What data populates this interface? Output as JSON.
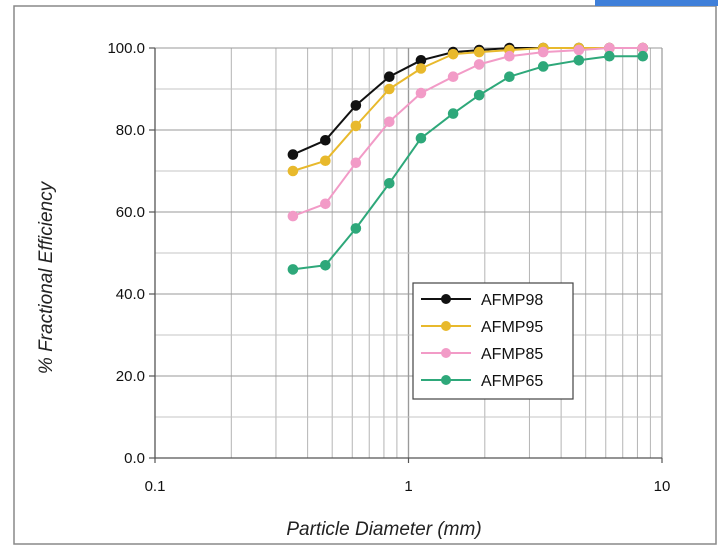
{
  "chart_data": {
    "type": "line",
    "title": "",
    "xlabel": "Particle Diameter (mm)",
    "ylabel": "% Fractional Efficiency",
    "x_scale": "log",
    "xlim": [
      0.1,
      10
    ],
    "ylim": [
      0,
      100
    ],
    "x_ticks": [
      "0.1",
      "1",
      "10"
    ],
    "y_ticks": [
      "0.0",
      "20.0",
      "40.0",
      "60.0",
      "80.0",
      "100.0"
    ],
    "grid": true,
    "legend_position": "lower-right",
    "series": [
      {
        "name": "AFMP98",
        "color": "#111111",
        "x": [
          0.35,
          0.47,
          0.62,
          0.84,
          1.12,
          1.5,
          1.9,
          2.5,
          3.4,
          4.7,
          6.2,
          8.4
        ],
        "y": [
          74,
          77.5,
          86,
          93,
          97,
          99,
          99.5,
          100,
          100,
          100,
          100,
          100
        ]
      },
      {
        "name": "AFMP95",
        "color": "#e8b92c",
        "x": [
          0.35,
          0.47,
          0.62,
          0.84,
          1.12,
          1.5,
          1.9,
          2.5,
          3.4,
          4.7,
          6.2,
          8.4
        ],
        "y": [
          70,
          72.5,
          81,
          90,
          95,
          98.5,
          99,
          99.5,
          100,
          100,
          100,
          100
        ]
      },
      {
        "name": "AFMP85",
        "color": "#f29bc7",
        "x": [
          0.35,
          0.47,
          0.62,
          0.84,
          1.12,
          1.5,
          1.9,
          2.5,
          3.4,
          4.7,
          6.2,
          8.4
        ],
        "y": [
          59,
          62,
          72,
          82,
          89,
          93,
          96,
          98,
          99,
          99.5,
          100,
          100
        ]
      },
      {
        "name": "AFMP65",
        "color": "#2ea87a",
        "x": [
          0.35,
          0.47,
          0.62,
          0.84,
          1.12,
          1.5,
          1.9,
          2.5,
          3.4,
          4.7,
          6.2,
          8.4
        ],
        "y": [
          46,
          47,
          56,
          67,
          78,
          84,
          88.5,
          93,
          95.5,
          97,
          98,
          98
        ]
      }
    ]
  }
}
